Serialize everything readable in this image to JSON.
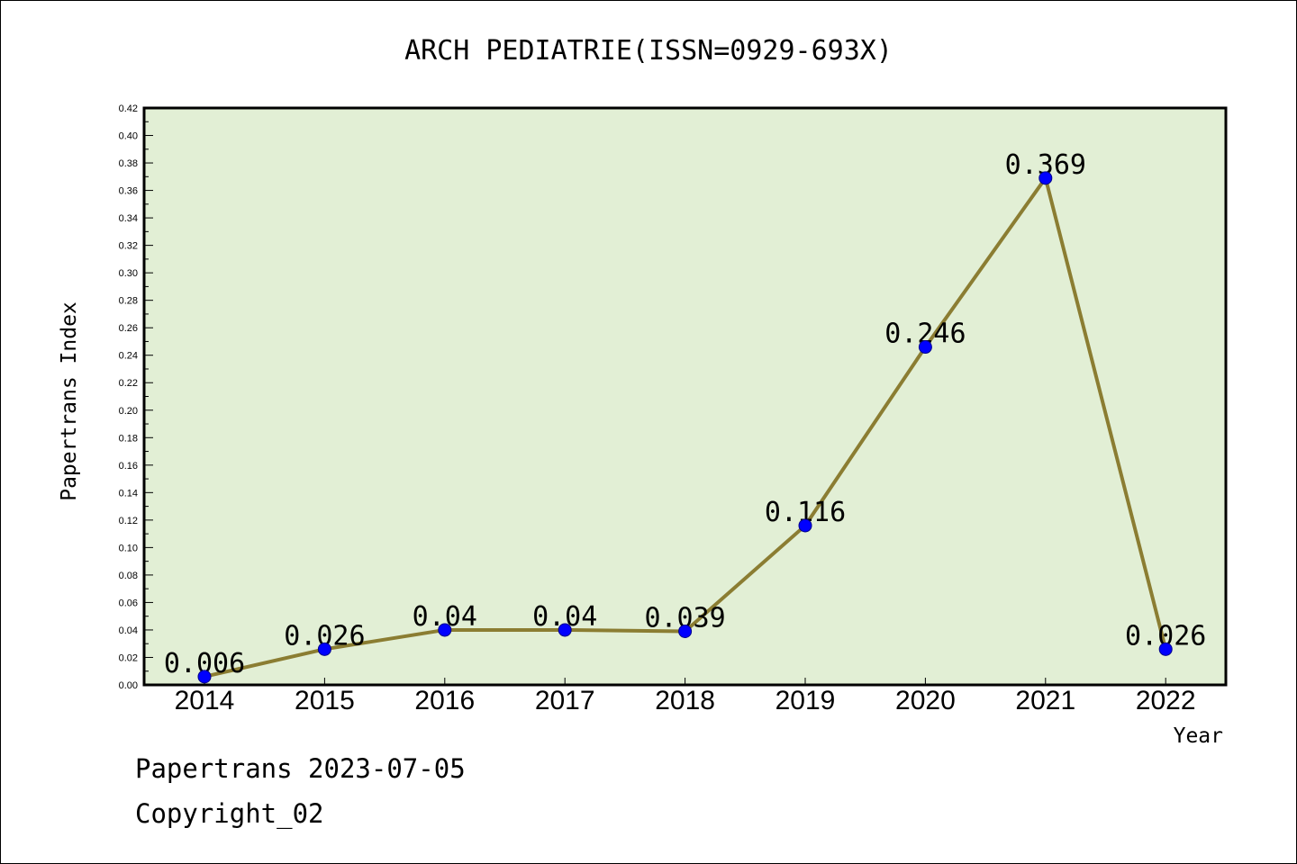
{
  "chart_data": {
    "type": "line",
    "title": "ARCH PEDIATRIE(ISSN=0929-693X)",
    "xlabel": "Year",
    "ylabel": "Papertrans Index",
    "categories": [
      "2014",
      "2015",
      "2016",
      "2017",
      "2018",
      "2019",
      "2020",
      "2021",
      "2022"
    ],
    "series": [
      {
        "values": [
          0.006,
          0.026,
          0.04,
          0.04,
          0.039,
          0.116,
          0.246,
          0.369,
          0.026
        ],
        "labels": [
          "0.006",
          "0.026",
          "0.04",
          "0.04",
          "0.039",
          "0.116",
          "0.246",
          "0.369",
          "0.026"
        ]
      }
    ],
    "ylim": [
      0,
      0.42
    ],
    "yticks": [
      "0.00",
      "0.02",
      "0.04",
      "0.06",
      "0.08",
      "0.10",
      "0.12",
      "0.14",
      "0.16",
      "0.18",
      "0.20",
      "0.22",
      "0.24",
      "0.26",
      "0.28",
      "0.30",
      "0.32",
      "0.34",
      "0.36",
      "0.38",
      "0.40",
      "0.42"
    ],
    "grid": false,
    "colors": {
      "plot_background": "#e2efd5",
      "line": "#8b7d32",
      "marker": "#0000ff"
    }
  },
  "footer": {
    "line1": "Papertrans 2023-07-05",
    "line2": "Copyright_02"
  }
}
